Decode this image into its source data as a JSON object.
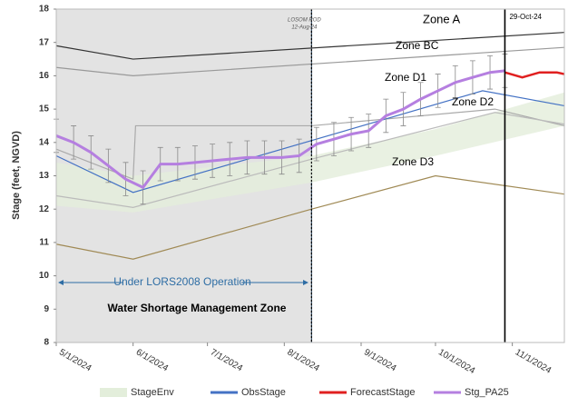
{
  "chart_data": {
    "type": "line",
    "y_label": "Stage (feet, NGVD)",
    "ylim": [
      8,
      18
    ],
    "yticks": [
      8,
      9,
      10,
      11,
      12,
      13,
      14,
      15,
      16,
      17,
      18
    ],
    "xlim": [
      "2024-05-01",
      "2024-11-22"
    ],
    "xticks": [
      {
        "value": "2024-05-01",
        "label": "5/1/2024"
      },
      {
        "value": "2024-06-01",
        "label": "6/1/2024"
      },
      {
        "value": "2024-07-01",
        "label": "7/1/2024"
      },
      {
        "value": "2024-08-01",
        "label": "8/1/2024"
      },
      {
        "value": "2024-09-01",
        "label": "9/1/2024"
      },
      {
        "value": "2024-10-01",
        "label": "10/1/2024"
      },
      {
        "value": "2024-11-01",
        "label": "11/1/2024"
      }
    ],
    "grid": false,
    "legend": "bottom",
    "zones": [
      {
        "name": "Zone A",
        "color": "#333333",
        "x": [
          "2024-05-01",
          "2024-06-01",
          "2024-11-22"
        ],
        "values": [
          16.9,
          16.5,
          17.3
        ]
      },
      {
        "name": "Zone BC",
        "color": "#999999",
        "x": [
          "2024-05-01",
          "2024-06-01",
          "2024-11-22"
        ],
        "values": [
          16.25,
          16.0,
          16.85
        ]
      },
      {
        "name": "Zone D1",
        "color": "#aaaaaa",
        "x": [
          "2024-05-01",
          "2024-06-01",
          "2024-06-02",
          "2024-08-12",
          "2024-10-25",
          "2024-11-22"
        ],
        "values": [
          13.8,
          12.9,
          14.5,
          14.5,
          15.0,
          14.5
        ]
      },
      {
        "name": "Zone D2",
        "color": "#bbbbbb",
        "x": [
          "2024-05-01",
          "2024-06-01",
          "2024-08-12",
          "2024-10-25",
          "2024-11-22"
        ],
        "values": [
          12.4,
          12.05,
          13.5,
          14.9,
          14.55
        ]
      },
      {
        "name": "Zone D3",
        "color": "#a08a55",
        "x": [
          "2024-05-01",
          "2024-06-01",
          "2024-08-12",
          "2024-10-01",
          "2024-11-22"
        ],
        "values": [
          10.95,
          10.5,
          12.0,
          13.0,
          12.45
        ]
      }
    ],
    "series": [
      {
        "name": "StageEnv",
        "color": "#e3eedb",
        "x": [
          "2024-05-01",
          "2024-06-01",
          "2024-08-12",
          "2024-10-01",
          "2024-11-22"
        ],
        "values": [
          13.4,
          13.0,
          13.6,
          14.4,
          15.5
        ],
        "base": [
          12.1,
          11.9,
          12.8,
          13.6,
          14.5
        ]
      },
      {
        "name": "ObsStage",
        "color": "#4472c4",
        "x": [
          "2024-05-01",
          "2024-06-01",
          "2024-10-20",
          "2024-11-22"
        ],
        "values": [
          13.6,
          12.5,
          15.55,
          15.1
        ]
      },
      {
        "name": "ForecastStage",
        "color": "#e02020",
        "x": [
          "2024-10-29",
          "2024-11-05",
          "2024-11-12",
          "2024-11-19",
          "2024-11-22"
        ],
        "values": [
          16.1,
          15.95,
          16.1,
          16.1,
          16.05
        ]
      },
      {
        "name": "Stg_PA25",
        "color": "#b57fe0",
        "x": [
          "2024-05-01",
          "2024-05-08",
          "2024-05-15",
          "2024-05-22",
          "2024-05-29",
          "2024-06-05",
          "2024-06-12",
          "2024-06-19",
          "2024-06-26",
          "2024-07-03",
          "2024-07-10",
          "2024-07-17",
          "2024-07-24",
          "2024-07-31",
          "2024-08-07",
          "2024-08-14",
          "2024-08-21",
          "2024-08-28",
          "2024-09-04",
          "2024-09-11",
          "2024-09-18",
          "2024-09-25",
          "2024-10-02",
          "2024-10-09",
          "2024-10-16",
          "2024-10-23",
          "2024-10-29"
        ],
        "values": [
          14.2,
          14.0,
          13.7,
          13.3,
          12.9,
          12.65,
          13.35,
          13.35,
          13.4,
          13.45,
          13.5,
          13.55,
          13.55,
          13.55,
          13.6,
          13.95,
          14.1,
          14.25,
          14.35,
          14.8,
          15.0,
          15.3,
          15.55,
          15.8,
          15.95,
          16.1,
          16.15
        ],
        "errors": [
          0.5,
          0.5,
          0.5,
          0.5,
          0.5,
          0.5,
          0.5,
          0.5,
          0.5,
          0.5,
          0.5,
          0.5,
          0.5,
          0.5,
          0.5,
          0.5,
          0.5,
          0.5,
          0.5,
          0.5,
          0.5,
          0.5,
          0.5,
          0.5,
          0.5,
          0.5,
          0.5
        ]
      }
    ],
    "markers": [
      {
        "date": "2024-08-12",
        "note": "LOSOM ROD",
        "label": "12-Aug-24"
      },
      {
        "date": "2024-10-29",
        "label": "29-Oct-24"
      }
    ],
    "annotations": [
      "Under LORS2008 Operation",
      "Water Shortage Management Zone"
    ]
  }
}
